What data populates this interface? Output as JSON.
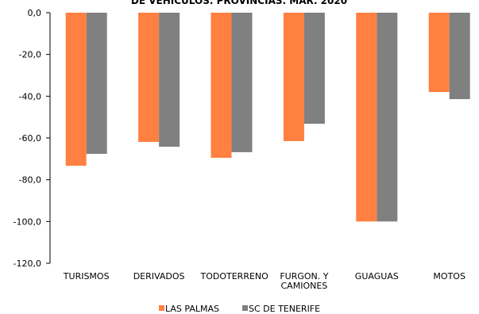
{
  "chart_data": {
    "type": "bar",
    "title": "DE VEHÍCULOS. PROVINCIAS. MAR. 2020",
    "categories": [
      "TURISMOS",
      "DERIVADOS",
      "TODOTERRENO",
      "FURGON. Y CAMIONES",
      "GUAGUAS",
      "MOTOS"
    ],
    "series": [
      {
        "name": "LAS PALMAS",
        "color": "#ff8040",
        "values": [
          -73.3,
          -61.9,
          -69.5,
          -61.5,
          -100,
          -38.0
        ]
      },
      {
        "name": "SC DE TENERIFE",
        "color": "#808080",
        "values": [
          -67.6,
          -64.2,
          -66.8,
          -53.2,
          -100,
          -41.4
        ]
      }
    ],
    "ylim": [
      -120,
      0
    ],
    "yticks": [
      {
        "value": 0,
        "label": "0,0"
      },
      {
        "value": -20,
        "label": "-20,0"
      },
      {
        "value": -40,
        "label": "-40,0"
      },
      {
        "value": -60,
        "label": "-60,0"
      },
      {
        "value": -80,
        "label": "-80,0"
      },
      {
        "value": -100,
        "label": "-100,0"
      },
      {
        "value": -120,
        "label": "-120,0"
      }
    ],
    "grid": false,
    "legend": "bottom"
  }
}
